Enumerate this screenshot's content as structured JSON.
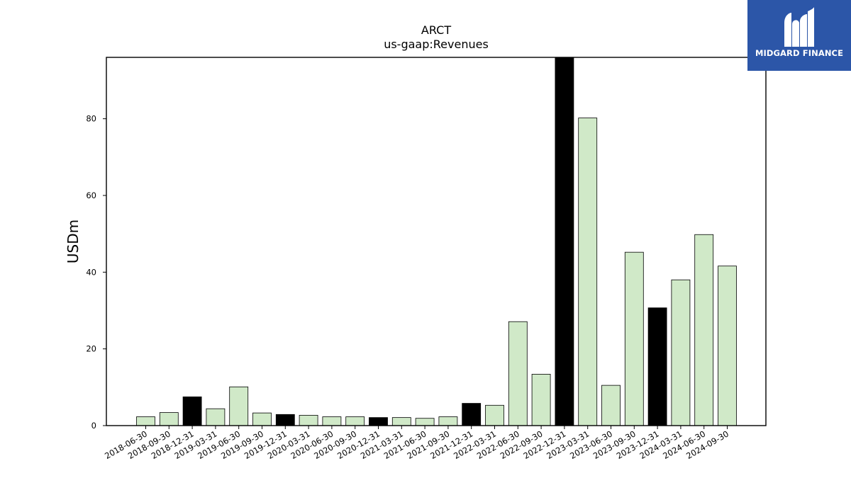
{
  "brand": {
    "logo_text": "MIDGARD FINANCE",
    "logo_bg": "#2c56a8"
  },
  "chart_data": {
    "type": "bar",
    "title": "ARCT",
    "subtitle": "us-gaap:Revenues",
    "xlabel": "",
    "ylabel": "USDm",
    "ylim": [
      0,
      96
    ],
    "yticks": [
      0,
      20,
      40,
      60,
      80
    ],
    "grid": false,
    "colors": {
      "quarter": "#d0e9c8",
      "year_end": "#000000",
      "edge": "#000000"
    },
    "categories": [
      "2018-06-30",
      "2018-09-30",
      "2018-12-31",
      "2019-03-31",
      "2019-06-30",
      "2019-09-30",
      "2019-12-31",
      "2020-03-31",
      "2020-06-30",
      "2020-09-30",
      "2020-12-31",
      "2021-03-31",
      "2021-06-30",
      "2021-09-30",
      "2021-12-31",
      "2022-03-31",
      "2022-06-30",
      "2022-09-30",
      "2022-12-31",
      "2023-03-31",
      "2023-06-30",
      "2023-09-30",
      "2023-12-31",
      "2024-03-31",
      "2024-06-30",
      "2024-09-30"
    ],
    "values": [
      2.3,
      3.4,
      7.5,
      4.4,
      10.1,
      3.3,
      2.9,
      2.7,
      2.3,
      2.3,
      2.1,
      2.1,
      1.9,
      2.3,
      5.8,
      5.3,
      27.1,
      13.4,
      96,
      80.2,
      10.5,
      45.2,
      30.7,
      38.0,
      49.8,
      41.6
    ],
    "year_end_flags": [
      false,
      false,
      true,
      false,
      false,
      false,
      true,
      false,
      false,
      false,
      true,
      false,
      false,
      false,
      true,
      false,
      false,
      false,
      true,
      false,
      false,
      false,
      true,
      false,
      false,
      false
    ]
  }
}
